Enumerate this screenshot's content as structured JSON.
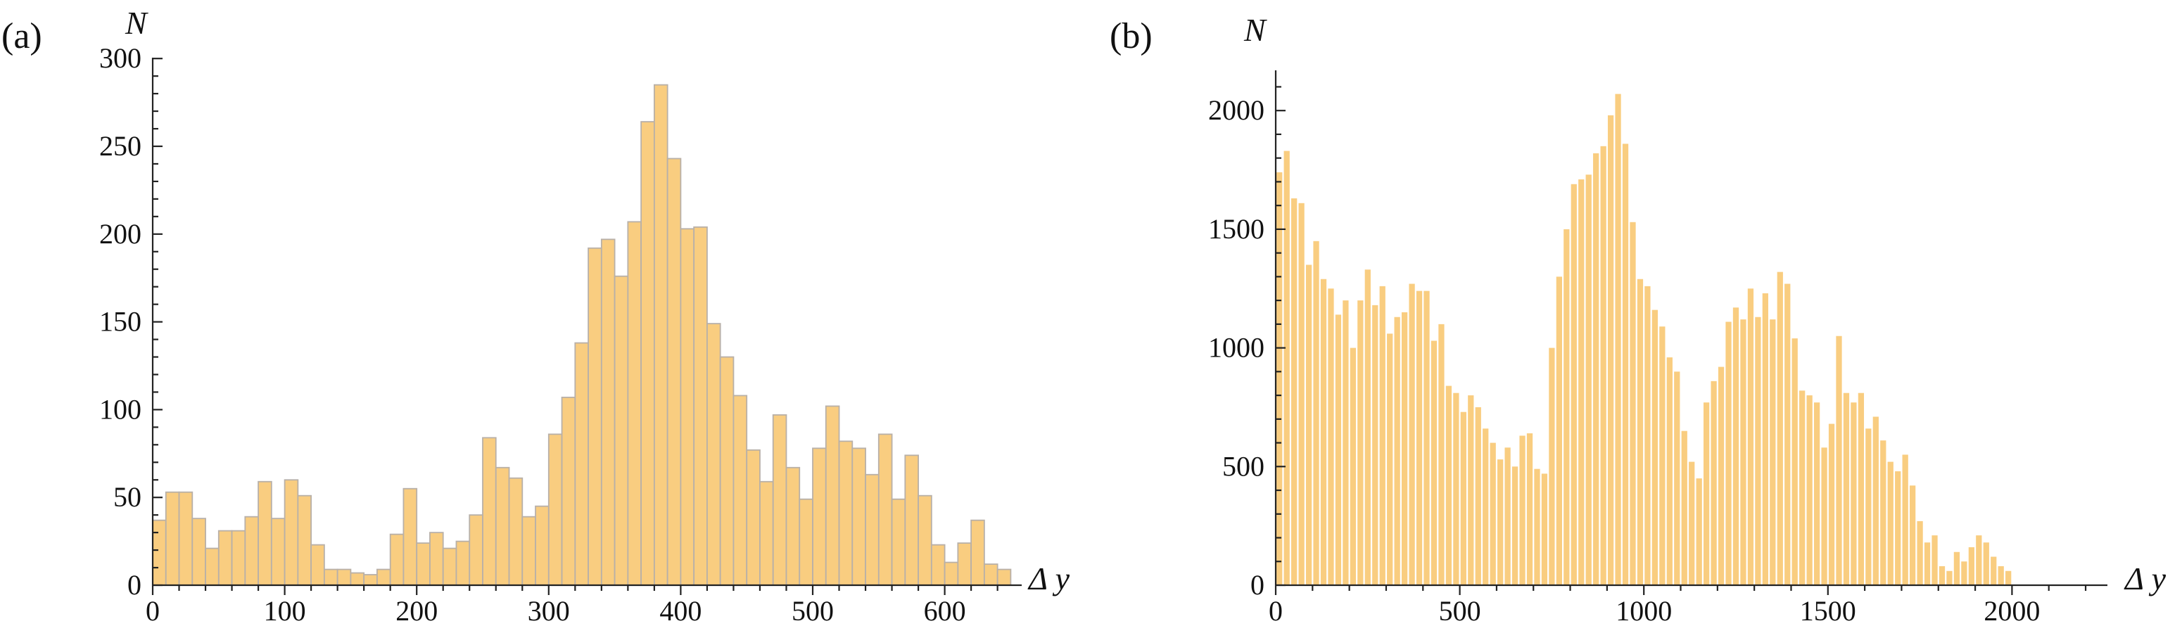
{
  "colors": {
    "bar_fill": "#f9cd80",
    "bar_stroke_a": "#b8b0a8",
    "axis": "#222222"
  },
  "chart_data": [
    {
      "panel": "(a)",
      "type": "bar",
      "ylabel": "N",
      "xlabel": "Δ y",
      "xlim": [
        0,
        670
      ],
      "ylim": [
        0,
        300
      ],
      "xticks": [
        0,
        100,
        200,
        300,
        400,
        500,
        600
      ],
      "yticks": [
        0,
        50,
        100,
        150,
        200,
        250,
        300
      ],
      "bin_width": 10,
      "x_start": 0,
      "values": [
        37,
        53,
        53,
        38,
        21,
        31,
        31,
        39,
        59,
        38,
        60,
        51,
        23,
        9,
        9,
        7,
        6,
        9,
        29,
        55,
        24,
        30,
        21,
        25,
        40,
        84,
        67,
        61,
        39,
        45,
        86,
        107,
        138,
        192,
        197,
        176,
        207,
        264,
        285,
        243,
        203,
        204,
        149,
        130,
        108,
        77,
        59,
        97,
        67,
        49,
        78,
        102,
        82,
        78,
        63,
        86,
        49,
        74,
        51,
        23,
        13,
        24,
        37,
        12,
        9
      ],
      "edge_stroke": true
    },
    {
      "panel": "(b)",
      "type": "bar",
      "ylabel": "N",
      "xlabel": "Δ y",
      "xlim": [
        0,
        2200
      ],
      "ylim": [
        0,
        2200
      ],
      "xticks": [
        0,
        500,
        1000,
        1500,
        2000
      ],
      "yticks": [
        0,
        500,
        1000,
        1500,
        2000
      ],
      "bin_width": 20,
      "x_start": 0,
      "values": [
        1740,
        1830,
        1630,
        1610,
        1350,
        1450,
        1290,
        1250,
        1140,
        1200,
        1000,
        1200,
        1330,
        1180,
        1260,
        1060,
        1130,
        1150,
        1270,
        1240,
        1240,
        1030,
        1100,
        840,
        810,
        730,
        800,
        750,
        660,
        600,
        530,
        580,
        500,
        630,
        640,
        490,
        470,
        1000,
        1300,
        1500,
        1690,
        1710,
        1730,
        1820,
        1850,
        1980,
        2070,
        1860,
        1530,
        1290,
        1260,
        1160,
        1090,
        960,
        900,
        650,
        520,
        450,
        770,
        860,
        920,
        1110,
        1170,
        1120,
        1250,
        1130,
        1230,
        1120,
        1320,
        1270,
        1040,
        820,
        800,
        770,
        580,
        680,
        1050,
        810,
        770,
        810,
        660,
        710,
        610,
        520,
        480,
        550,
        420,
        270,
        180,
        210,
        80,
        60,
        140,
        100,
        160,
        210,
        180,
        120,
        80,
        60
      ]
    }
  ]
}
